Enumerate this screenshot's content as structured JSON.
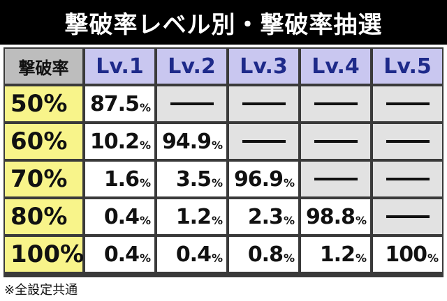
{
  "title": "撃破率レベル別・撃破率抽選",
  "table": {
    "corner_label": "撃破率",
    "columns": [
      "Lv.1",
      "Lv.2",
      "Lv.3",
      "Lv.4",
      "Lv.5"
    ],
    "percent_sign": "%",
    "rows": [
      {
        "label": "50%",
        "cells": [
          "87.5",
          null,
          null,
          null,
          null
        ]
      },
      {
        "label": "60%",
        "cells": [
          "10.2",
          "94.9",
          null,
          null,
          null
        ]
      },
      {
        "label": "70%",
        "cells": [
          "1.6",
          "3.5",
          "96.9",
          null,
          null
        ]
      },
      {
        "label": "80%",
        "cells": [
          "0.4",
          "1.2",
          "2.3",
          "98.8",
          null
        ]
      },
      {
        "label": "100%",
        "cells": [
          "0.4",
          "0.4",
          "0.8",
          "1.2",
          "100"
        ]
      }
    ]
  },
  "footnote": "※全設定共通"
}
